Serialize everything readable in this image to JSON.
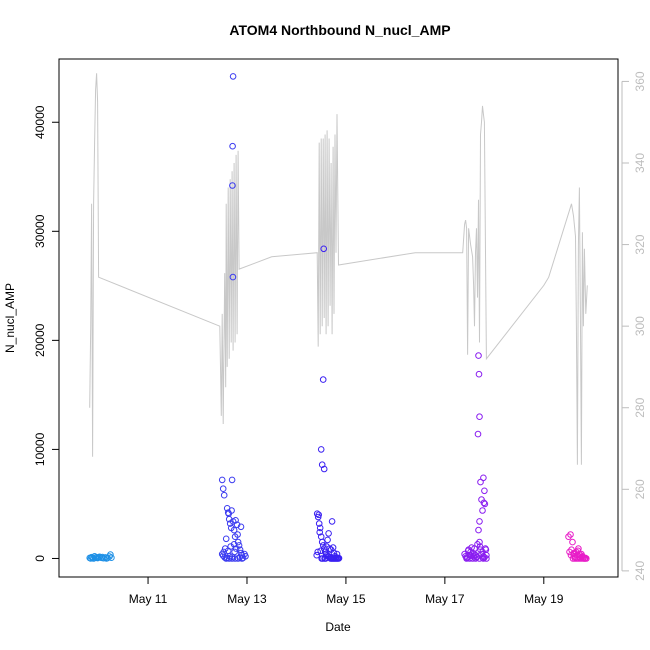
{
  "chart_data": {
    "type": "scatter",
    "title": "ATOM4 Northbound N_nucl_AMP",
    "xlabel": "Date",
    "ylabel": "N_nucl_AMP",
    "xlim": [
      9.2,
      20.5
    ],
    "ylim": [
      -1700,
      45800
    ],
    "y2lim": [
      238.5,
      365.5
    ],
    "x_ticks": [
      11,
      13,
      15,
      17,
      19
    ],
    "x_tick_labels": [
      "May 11",
      "May 13",
      "May 15",
      "May 17",
      "May 19"
    ],
    "y_ticks": [
      0,
      10000,
      20000,
      30000,
      40000
    ],
    "y_tick_labels": [
      "0",
      "10000",
      "20000",
      "30000",
      "40000"
    ],
    "y2_ticks": [
      240,
      260,
      280,
      300,
      320,
      340,
      360
    ],
    "y2_tick_labels": [
      "240",
      "260",
      "280",
      "300",
      "320",
      "340",
      "360"
    ],
    "colors": {
      "line": "#c8c8c8",
      "right_axis": "#bdbdbd",
      "frame": "#000000"
    },
    "scatter_groups": [
      {
        "color": "#1e90e6",
        "points": [
          [
            9.82,
            50
          ],
          [
            9.86,
            120
          ],
          [
            9.9,
            0
          ],
          [
            9.94,
            80
          ],
          [
            9.98,
            30
          ],
          [
            10.02,
            150
          ],
          [
            10.06,
            60
          ],
          [
            10.1,
            20
          ],
          [
            10.14,
            100
          ],
          [
            10.18,
            40
          ],
          [
            10.22,
            180
          ],
          [
            10.26,
            70
          ],
          [
            9.84,
            10
          ],
          [
            9.92,
            200
          ],
          [
            10.0,
            90
          ],
          [
            10.08,
            130
          ],
          [
            10.16,
            10
          ],
          [
            10.24,
            350
          ],
          [
            9.88,
            60
          ],
          [
            9.96,
            110
          ]
        ]
      },
      {
        "color": "#3b3bf0",
        "points": [
          [
            12.5,
            7200
          ],
          [
            12.52,
            6400
          ],
          [
            12.54,
            5800
          ],
          [
            12.6,
            4600
          ],
          [
            12.62,
            4200
          ],
          [
            12.64,
            3600
          ],
          [
            12.66,
            3200
          ],
          [
            12.68,
            2800
          ],
          [
            12.7,
            7200
          ],
          [
            12.72,
            3400
          ],
          [
            12.74,
            2600
          ],
          [
            12.76,
            2000
          ],
          [
            12.8,
            3100
          ],
          [
            12.82,
            1500
          ],
          [
            12.84,
            1200
          ],
          [
            12.86,
            800
          ],
          [
            12.88,
            500
          ],
          [
            12.9,
            300
          ],
          [
            12.58,
            1800
          ],
          [
            12.56,
            900
          ],
          [
            12.53,
            600
          ],
          [
            12.5,
            400
          ],
          [
            12.55,
            100
          ],
          [
            12.6,
            50
          ],
          [
            12.65,
            200
          ],
          [
            12.7,
            150
          ],
          [
            12.75,
            600
          ],
          [
            12.78,
            900
          ],
          [
            12.85,
            100
          ],
          [
            12.92,
            50
          ],
          [
            12.95,
            400
          ],
          [
            12.97,
            200
          ],
          [
            12.72,
            44200
          ],
          [
            12.71,
            37800
          ],
          [
            12.705,
            34200
          ],
          [
            12.715,
            25800
          ],
          [
            12.63,
            4100
          ],
          [
            12.69,
            4400
          ],
          [
            12.77,
            3500
          ],
          [
            12.62,
            700
          ],
          [
            12.67,
            1100
          ],
          [
            12.74,
            1300
          ],
          [
            12.81,
            2200
          ],
          [
            12.88,
            2900
          ],
          [
            12.52,
            250
          ],
          [
            12.58,
            0
          ],
          [
            12.64,
            0
          ],
          [
            12.7,
            0
          ],
          [
            12.76,
            0
          ],
          [
            12.82,
            0
          ],
          [
            12.9,
            0
          ]
        ]
      },
      {
        "color": "#3a20f2",
        "points": [
          [
            14.42,
            4100
          ],
          [
            14.44,
            3800
          ],
          [
            14.46,
            3200
          ],
          [
            14.48,
            2800
          ],
          [
            14.5,
            2000
          ],
          [
            14.52,
            1500
          ],
          [
            14.54,
            1200
          ],
          [
            14.56,
            900
          ],
          [
            14.58,
            600
          ],
          [
            14.6,
            400
          ],
          [
            14.62,
            300
          ],
          [
            14.64,
            200
          ],
          [
            14.66,
            150
          ],
          [
            14.68,
            100
          ],
          [
            14.7,
            800
          ],
          [
            14.72,
            3400
          ],
          [
            14.74,
            1000
          ],
          [
            14.76,
            500
          ],
          [
            14.78,
            200
          ],
          [
            14.8,
            100
          ],
          [
            14.82,
            400
          ],
          [
            14.84,
            50
          ],
          [
            14.86,
            20
          ],
          [
            14.55,
            28400
          ],
          [
            14.54,
            16400
          ],
          [
            14.5,
            10000
          ],
          [
            14.52,
            8600
          ],
          [
            14.56,
            8200
          ],
          [
            14.45,
            4000
          ],
          [
            14.47,
            2400
          ],
          [
            14.49,
            700
          ],
          [
            14.51,
            0
          ],
          [
            14.53,
            0
          ],
          [
            14.57,
            0
          ],
          [
            14.59,
            0
          ],
          [
            14.61,
            1100
          ],
          [
            14.63,
            1700
          ],
          [
            14.65,
            2300
          ],
          [
            14.67,
            900
          ],
          [
            14.69,
            0
          ],
          [
            14.71,
            0
          ],
          [
            14.73,
            0
          ],
          [
            14.75,
            0
          ],
          [
            14.77,
            0
          ],
          [
            14.79,
            0
          ],
          [
            14.81,
            0
          ],
          [
            14.83,
            0
          ],
          [
            14.85,
            0
          ],
          [
            14.43,
            600
          ],
          [
            14.41,
            300
          ]
        ]
      },
      {
        "color": "#8a1ef0",
        "points": [
          [
            17.4,
            400
          ],
          [
            17.42,
            200
          ],
          [
            17.44,
            100
          ],
          [
            17.46,
            50
          ],
          [
            17.48,
            800
          ],
          [
            17.5,
            300
          ],
          [
            17.52,
            600
          ],
          [
            17.54,
            1000
          ],
          [
            17.56,
            500
          ],
          [
            17.58,
            200
          ],
          [
            17.6,
            900
          ],
          [
            17.62,
            300
          ],
          [
            17.64,
            100
          ],
          [
            17.66,
            1300
          ],
          [
            17.68,
            2600
          ],
          [
            17.7,
            1500
          ],
          [
            17.72,
            800
          ],
          [
            17.74,
            400
          ],
          [
            17.76,
            600
          ],
          [
            17.78,
            200
          ],
          [
            17.8,
            100
          ],
          [
            17.82,
            900
          ],
          [
            17.84,
            300
          ],
          [
            17.68,
            18600
          ],
          [
            17.69,
            16900
          ],
          [
            17.7,
            13000
          ],
          [
            17.67,
            11400
          ],
          [
            17.72,
            7000
          ],
          [
            17.78,
            7400
          ],
          [
            17.8,
            6200
          ],
          [
            17.74,
            5400
          ],
          [
            17.79,
            5100
          ],
          [
            17.81,
            5000
          ],
          [
            17.7,
            3400
          ],
          [
            17.76,
            4400
          ],
          [
            17.44,
            0
          ],
          [
            17.5,
            0
          ],
          [
            17.56,
            0
          ],
          [
            17.62,
            0
          ],
          [
            17.7,
            0
          ],
          [
            17.78,
            0
          ],
          [
            17.84,
            0
          ],
          [
            17.47,
            700
          ],
          [
            17.53,
            250
          ],
          [
            17.59,
            450
          ],
          [
            17.65,
            150
          ],
          [
            17.71,
            1100
          ],
          [
            17.77,
            50
          ],
          [
            17.83,
            800
          ]
        ]
      },
      {
        "color": "#e81ec8",
        "points": [
          [
            19.5,
            2000
          ],
          [
            19.54,
            2200
          ],
          [
            19.56,
            800
          ],
          [
            19.6,
            400
          ],
          [
            19.62,
            200
          ],
          [
            19.64,
            100
          ],
          [
            19.66,
            600
          ],
          [
            19.68,
            300
          ],
          [
            19.7,
            900
          ],
          [
            19.72,
            150
          ],
          [
            19.74,
            50
          ],
          [
            19.76,
            400
          ],
          [
            19.78,
            200
          ],
          [
            19.8,
            100
          ],
          [
            19.82,
            0
          ],
          [
            19.84,
            50
          ],
          [
            19.58,
            1500
          ],
          [
            19.52,
            600
          ],
          [
            19.55,
            300
          ],
          [
            19.59,
            0
          ],
          [
            19.63,
            0
          ],
          [
            19.67,
            0
          ],
          [
            19.71,
            0
          ],
          [
            19.75,
            0
          ],
          [
            19.79,
            0
          ],
          [
            19.83,
            0
          ],
          [
            19.86,
            0
          ],
          [
            19.61,
            500
          ],
          [
            19.69,
            700
          ],
          [
            19.73,
            350
          ],
          [
            19.77,
            120
          ]
        ]
      }
    ],
    "line_series": {
      "name": "right axis (240-360)",
      "points": [
        [
          9.82,
          280
        ],
        [
          9.84,
          300
        ],
        [
          9.86,
          330
        ],
        [
          9.88,
          268
        ],
        [
          9.9,
          330
        ],
        [
          9.92,
          345
        ],
        [
          9.94,
          358
        ],
        [
          9.96,
          362
        ],
        [
          9.98,
          355
        ],
        [
          10.0,
          312
        ],
        [
          12.45,
          300
        ],
        [
          12.48,
          278
        ],
        [
          12.5,
          303
        ],
        [
          12.52,
          276
        ],
        [
          12.55,
          313
        ],
        [
          12.57,
          285
        ],
        [
          12.58,
          330
        ],
        [
          12.6,
          290
        ],
        [
          12.62,
          334
        ],
        [
          12.64,
          292
        ],
        [
          12.66,
          336
        ],
        [
          12.68,
          296
        ],
        [
          12.7,
          338
        ],
        [
          12.72,
          294
        ],
        [
          12.74,
          340
        ],
        [
          12.76,
          296
        ],
        [
          12.78,
          342
        ],
        [
          12.8,
          298
        ],
        [
          12.82,
          343
        ],
        [
          12.84,
          314
        ],
        [
          13.5,
          317
        ],
        [
          14.42,
          318
        ],
        [
          14.44,
          295
        ],
        [
          14.46,
          345
        ],
        [
          14.48,
          298
        ],
        [
          14.5,
          346
        ],
        [
          14.52,
          300
        ],
        [
          14.54,
          346
        ],
        [
          14.56,
          302
        ],
        [
          14.58,
          347
        ],
        [
          14.6,
          298
        ],
        [
          14.62,
          348
        ],
        [
          14.64,
          300
        ],
        [
          14.66,
          346
        ],
        [
          14.68,
          305
        ],
        [
          14.7,
          340
        ],
        [
          14.72,
          298
        ],
        [
          14.74,
          344
        ],
        [
          14.76,
          303
        ],
        [
          14.78,
          347
        ],
        [
          14.8,
          318
        ],
        [
          14.82,
          352
        ],
        [
          14.85,
          315
        ],
        [
          16.4,
          318
        ],
        [
          17.36,
          318
        ],
        [
          17.4,
          325
        ],
        [
          17.42,
          326
        ],
        [
          17.44,
          324
        ],
        [
          17.46,
          293
        ],
        [
          17.48,
          324
        ],
        [
          17.52,
          320
        ],
        [
          17.56,
          317
        ],
        [
          17.58,
          310
        ],
        [
          17.6,
          300
        ],
        [
          17.62,
          318
        ],
        [
          17.64,
          324
        ],
        [
          17.66,
          307
        ],
        [
          17.68,
          331
        ],
        [
          17.7,
          296
        ],
        [
          17.72,
          347
        ],
        [
          17.74,
          350
        ],
        [
          17.76,
          354
        ],
        [
          17.78,
          352
        ],
        [
          17.8,
          350
        ],
        [
          17.84,
          292
        ],
        [
          19.0,
          310
        ],
        [
          19.1,
          312
        ],
        [
          19.56,
          330
        ],
        [
          19.6,
          327
        ],
        [
          19.64,
          322
        ],
        [
          19.66,
          300
        ],
        [
          19.68,
          266
        ],
        [
          19.7,
          320
        ],
        [
          19.72,
          334
        ],
        [
          19.74,
          303
        ],
        [
          19.76,
          266
        ],
        [
          19.78,
          323
        ],
        [
          19.8,
          300
        ],
        [
          19.82,
          319
        ],
        [
          19.85,
          303
        ],
        [
          19.88,
          310
        ]
      ]
    }
  }
}
